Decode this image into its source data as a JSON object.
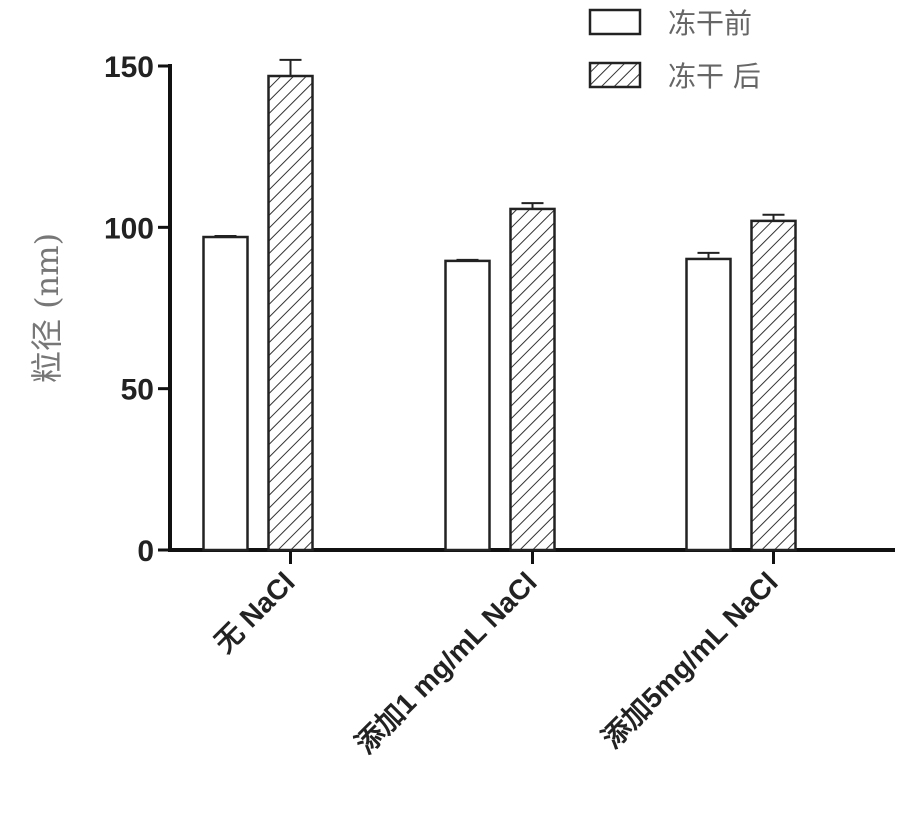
{
  "chart_data": {
    "type": "bar",
    "title": "",
    "xlabel": "",
    "ylabel": "粒径 (nm)",
    "ylim": [
      0,
      150
    ],
    "yticks": [
      0,
      50,
      100,
      150
    ],
    "grid": false,
    "legend_position": "top-right",
    "categories": [
      "无 NaCl",
      "添加1 mg/mL NaCl",
      "添加5mg/mL NaCl"
    ],
    "series": [
      {
        "name": "冻干前",
        "pattern": "none",
        "fill": "#ffffff",
        "values": [
          97,
          89.6,
          90.2
        ],
        "errors": [
          0.3,
          0.3,
          1.9
        ]
      },
      {
        "name": "冻干 后",
        "pattern": "diagonal-hatch",
        "fill": "#ffffff",
        "values": [
          146.9,
          105.7,
          102
        ],
        "errors": [
          5,
          1.8,
          1.9
        ]
      }
    ]
  }
}
